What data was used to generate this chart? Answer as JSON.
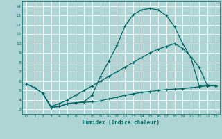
{
  "background_color": "#aed4d4",
  "grid_color": "#c8e8e8",
  "line_color": "#006666",
  "xlabel": "Humidex (Indice chaleur)",
  "xlim": [
    -0.5,
    23.5
  ],
  "ylim": [
    2.5,
    14.5
  ],
  "xticks": [
    0,
    1,
    2,
    3,
    4,
    5,
    6,
    7,
    8,
    9,
    10,
    11,
    12,
    13,
    14,
    15,
    16,
    17,
    18,
    19,
    20,
    21,
    22,
    23
  ],
  "yticks": [
    3,
    4,
    5,
    6,
    7,
    8,
    9,
    10,
    11,
    12,
    13,
    14
  ],
  "curve1_x": [
    0,
    1,
    2,
    3,
    4,
    5,
    6,
    7,
    8,
    9,
    10,
    11,
    12,
    13,
    14,
    15,
    16,
    17,
    18,
    19,
    20,
    21,
    22,
    23
  ],
  "curve1_y": [
    5.7,
    5.3,
    4.7,
    3.2,
    3.3,
    3.6,
    3.7,
    3.8,
    4.5,
    6.5,
    8.1,
    9.8,
    11.9,
    13.1,
    13.6,
    13.75,
    13.6,
    13.0,
    11.8,
    10.0,
    8.5,
    5.5,
    5.6,
    5.5
  ],
  "curve2_x": [
    0,
    1,
    2,
    3,
    4,
    5,
    6,
    7,
    8,
    9,
    10,
    11,
    12,
    13,
    14,
    15,
    16,
    17,
    18,
    19,
    20,
    21,
    22,
    23
  ],
  "curve2_y": [
    5.7,
    5.3,
    4.7,
    3.3,
    3.6,
    4.0,
    4.5,
    5.0,
    5.5,
    6.0,
    6.5,
    7.0,
    7.5,
    8.0,
    8.5,
    9.0,
    9.4,
    9.7,
    10.0,
    9.5,
    8.6,
    7.5,
    5.5,
    5.5
  ],
  "curve3_x": [
    2,
    3,
    4,
    5,
    6,
    7,
    8,
    9,
    10,
    11,
    12,
    13,
    14,
    15,
    16,
    17,
    18,
    19,
    20,
    21,
    22,
    23
  ],
  "curve3_y": [
    4.7,
    3.2,
    3.3,
    3.6,
    3.7,
    3.75,
    3.8,
    3.9,
    4.1,
    4.3,
    4.5,
    4.65,
    4.8,
    4.9,
    5.0,
    5.1,
    5.15,
    5.2,
    5.3,
    5.4,
    5.5,
    5.55
  ]
}
